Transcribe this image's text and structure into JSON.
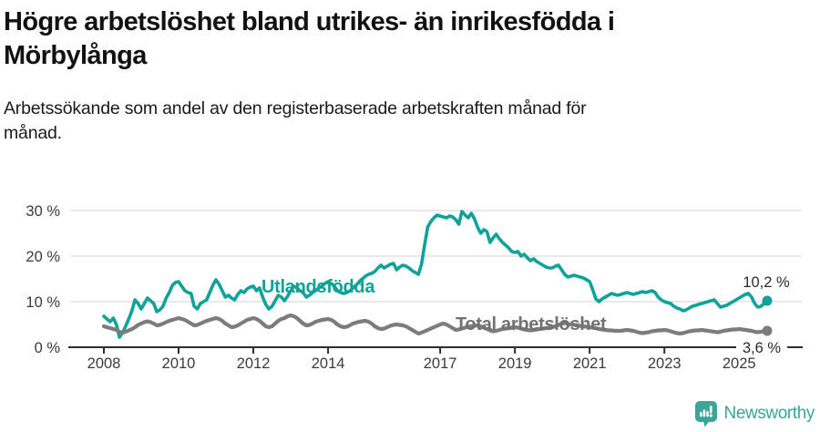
{
  "header": {
    "title_lines": [
      "Högre arbetslöshet bland utrikes- än inrikesfödda i",
      "Mörbylånga"
    ],
    "subtitle_lines": [
      "Arbetssökande som andel av den registerbaserade arbetskraften månad för",
      "månad."
    ]
  },
  "footer": {
    "brand": "Newsworthy",
    "logo_icon": "bar-chart-exclamation-pin"
  },
  "colors": {
    "foreign_born": "#0fa298",
    "total": "#7c7c7c",
    "total_label": "#717174",
    "grid": "#dcdcdc",
    "axis": "#2e2e2e",
    "axis_text": "#3a3a3a",
    "value_text": "#2b2b2b",
    "brand": "#3ba49b"
  },
  "chart_data": {
    "type": "line",
    "title": "Högre arbetslöshet bland utrikes- än inrikesfödda i Mörbylånga",
    "subtitle": "Arbetssökande som andel av den registerbaserade arbetskraften månad för månad.",
    "interval": "monthly",
    "x_start": "2008-01",
    "x_end": "2025-10",
    "ylim": [
      0,
      32
    ],
    "grid": true,
    "ytick_values": [
      0,
      10,
      20,
      30
    ],
    "ytick_labels": [
      "0 %",
      "10 %",
      "20 %",
      "30 %"
    ],
    "xtick_years": [
      2008,
      2010,
      2012,
      2014,
      2017,
      2019,
      2021,
      2023,
      2025
    ],
    "xtick_labels": [
      "2008",
      "2010",
      "2012",
      "2014",
      "2017",
      "2019",
      "2021",
      "2023",
      "2025"
    ],
    "series": [
      {
        "name": "Utlandsfödda",
        "end_label": "10,2 %",
        "end_value": 10.2,
        "values": [
          6.8,
          6.2,
          5.6,
          6.4,
          5.0,
          2.2,
          3.2,
          4.6,
          6.2,
          8.0,
          10.4,
          9.6,
          8.4,
          9.6,
          10.8,
          10.2,
          9.6,
          7.8,
          8.2,
          9.0,
          10.8,
          12.0,
          13.6,
          14.2,
          14.4,
          13.4,
          12.4,
          12.0,
          11.8,
          9.0,
          8.4,
          9.6,
          10.0,
          10.4,
          12.0,
          13.6,
          14.8,
          13.8,
          12.4,
          11.0,
          11.4,
          10.8,
          10.4,
          11.6,
          12.4,
          12.0,
          12.8,
          13.2,
          13.4,
          12.4,
          13.0,
          11.0,
          9.4,
          8.4,
          9.0,
          10.2,
          11.4,
          11.0,
          10.2,
          11.2,
          12.4,
          13.4,
          13.0,
          12.4,
          12.0,
          11.0,
          11.4,
          12.0,
          12.4,
          13.0,
          13.4,
          14.0,
          14.4,
          14.0,
          13.4,
          12.4,
          12.0,
          11.8,
          12.0,
          12.4,
          13.0,
          13.6,
          14.4,
          15.0,
          15.6,
          16.0,
          16.2,
          16.6,
          17.4,
          18.0,
          17.4,
          17.8,
          18.2,
          18.4,
          17.0,
          17.6,
          18.0,
          17.8,
          17.4,
          16.8,
          16.4,
          16.0,
          18.2,
          22.4,
          26.4,
          27.6,
          28.4,
          29.0,
          28.8,
          28.6,
          28.4,
          28.8,
          28.6,
          28.0,
          27.0,
          29.8,
          29.0,
          28.4,
          29.4,
          28.2,
          26.4,
          25.0,
          25.8,
          25.4,
          23.0,
          24.0,
          24.8,
          23.8,
          23.0,
          22.4,
          21.8,
          21.0,
          20.8,
          21.0,
          20.0,
          20.4,
          19.6,
          19.0,
          19.4,
          18.8,
          18.4,
          18.0,
          17.6,
          17.4,
          17.4,
          17.8,
          18.0,
          17.0,
          16.0,
          15.4,
          15.6,
          15.8,
          15.6,
          15.4,
          15.2,
          14.8,
          14.4,
          12.6,
          10.6,
          10.0,
          10.6,
          11.0,
          11.4,
          11.8,
          11.6,
          11.4,
          11.6,
          11.8,
          12.0,
          11.8,
          11.6,
          11.8,
          12.0,
          12.2,
          12.0,
          12.2,
          12.4,
          12.0,
          11.0,
          10.4,
          10.0,
          9.8,
          9.6,
          9.0,
          8.6,
          8.4,
          8.0,
          8.2,
          8.6,
          9.0,
          9.2,
          9.4,
          9.6,
          9.8,
          10.0,
          10.2,
          10.4,
          9.6,
          8.8,
          9.0,
          9.2,
          9.6,
          10.0,
          10.4,
          10.8,
          11.2,
          11.6,
          11.8,
          11.0,
          9.6,
          8.8,
          9.0,
          9.6,
          10.2
        ]
      },
      {
        "name": "Total arbetslöshet",
        "end_label": "3,6 %",
        "end_value": 3.6,
        "values": [
          4.6,
          4.4,
          4.2,
          4.0,
          3.8,
          3.4,
          3.2,
          3.4,
          3.7,
          4.0,
          4.4,
          4.9,
          5.2,
          5.5,
          5.7,
          5.5,
          5.2,
          4.8,
          4.9,
          5.2,
          5.5,
          5.8,
          6.0,
          6.2,
          6.4,
          6.2,
          6.0,
          5.6,
          5.2,
          4.8,
          4.9,
          5.2,
          5.5,
          5.8,
          6.0,
          6.2,
          6.4,
          6.2,
          5.8,
          5.2,
          4.8,
          4.4,
          4.5,
          4.8,
          5.2,
          5.6,
          6.0,
          6.2,
          6.4,
          6.2,
          5.8,
          5.2,
          4.6,
          4.4,
          4.6,
          5.2,
          5.8,
          6.2,
          6.4,
          6.8,
          7.0,
          6.8,
          6.4,
          5.8,
          5.2,
          4.8,
          4.9,
          5.2,
          5.6,
          5.8,
          6.0,
          6.1,
          6.2,
          6.0,
          5.6,
          5.0,
          4.6,
          4.4,
          4.5,
          4.8,
          5.2,
          5.4,
          5.6,
          5.7,
          5.8,
          5.6,
          5.2,
          4.6,
          4.2,
          4.0,
          4.1,
          4.4,
          4.7,
          4.9,
          5.0,
          4.9,
          4.8,
          4.6,
          4.2,
          3.8,
          3.4,
          3.0,
          3.2,
          3.5,
          3.8,
          4.1,
          4.4,
          4.7,
          5.0,
          5.2,
          5.0,
          4.6,
          4.2,
          3.8,
          3.9,
          4.1,
          4.3,
          4.5,
          4.6,
          4.7,
          4.8,
          4.6,
          4.3,
          4.0,
          3.7,
          3.5,
          3.6,
          3.8,
          4.0,
          4.1,
          4.2,
          4.3,
          4.4,
          4.3,
          4.1,
          3.9,
          3.8,
          3.7,
          3.8,
          3.9,
          4.0,
          4.1,
          4.2,
          4.3,
          4.4,
          4.6,
          4.9,
          5.2,
          5.3,
          5.1,
          5.0,
          4.9,
          4.8,
          4.7,
          4.6,
          4.5,
          4.4,
          4.3,
          4.2,
          4.0,
          3.9,
          3.8,
          3.7,
          3.7,
          3.6,
          3.6,
          3.6,
          3.7,
          3.8,
          3.7,
          3.6,
          3.4,
          3.2,
          3.1,
          3.2,
          3.3,
          3.5,
          3.6,
          3.7,
          3.7,
          3.8,
          3.7,
          3.5,
          3.3,
          3.1,
          3.0,
          3.1,
          3.3,
          3.5,
          3.6,
          3.7,
          3.7,
          3.8,
          3.7,
          3.6,
          3.5,
          3.4,
          3.3,
          3.4,
          3.6,
          3.7,
          3.8,
          3.9,
          3.9,
          4.0,
          3.9,
          3.8,
          3.7,
          3.6,
          3.4,
          3.3,
          3.4,
          3.5,
          3.6
        ]
      }
    ],
    "legend_position": "inline-labels"
  }
}
